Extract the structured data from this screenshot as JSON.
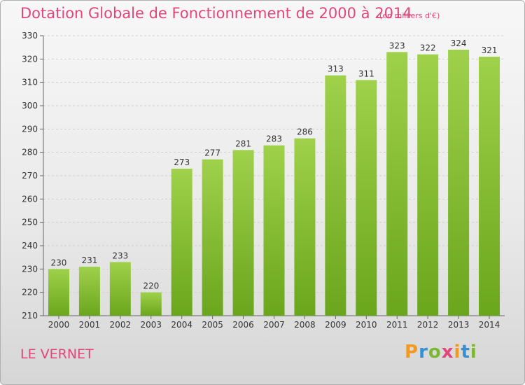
{
  "title": "Dotation Globale de Fonctionnement de 2000 à 2014",
  "unit": "(en milliers d'€)",
  "place": "LE VERNET",
  "logo": {
    "text": "Proxiti",
    "letters": [
      {
        "ch": "P",
        "color": "#f29a1f"
      },
      {
        "ch": "r",
        "color": "#3a8fd0"
      },
      {
        "ch": "o",
        "color": "#7cb82f"
      },
      {
        "ch": "x",
        "color": "#e0457b"
      },
      {
        "ch": "i",
        "color": "#f29a1f"
      },
      {
        "ch": "t",
        "color": "#3a8fd0"
      },
      {
        "ch": "i",
        "color": "#7cb82f"
      }
    ]
  },
  "colors": {
    "bar_top": "#9fd14a",
    "bar_bottom": "#6aa61c",
    "text": "#333333",
    "accent": "#e0457b",
    "grid": "#cfcfcf"
  },
  "chart_data": {
    "type": "bar",
    "categories": [
      "2000",
      "2001",
      "2002",
      "2003",
      "2004",
      "2005",
      "2006",
      "2007",
      "2008",
      "2009",
      "2010",
      "2011",
      "2012",
      "2013",
      "2014"
    ],
    "values": [
      230,
      231,
      233,
      220,
      273,
      277,
      281,
      283,
      286,
      313,
      311,
      323,
      322,
      324,
      321
    ],
    "data_labels": [
      "230",
      "231",
      "233",
      "220",
      "273",
      "277",
      "281",
      "283",
      "286",
      "313",
      "311",
      "323",
      "322",
      "324",
      "321"
    ],
    "title": "Dotation Globale de Fonctionnement de 2000 à 2014",
    "xlabel": "",
    "ylabel": "",
    "ylim": [
      210,
      330
    ],
    "yticks": [
      210,
      220,
      230,
      240,
      250,
      260,
      270,
      280,
      290,
      300,
      310,
      320,
      330
    ],
    "ytick_labels": [
      "210",
      "220",
      "230",
      "240",
      "250",
      "260",
      "270",
      "280",
      "290",
      "300",
      "310",
      "320",
      "330"
    ],
    "grid": true,
    "legend": "none"
  }
}
